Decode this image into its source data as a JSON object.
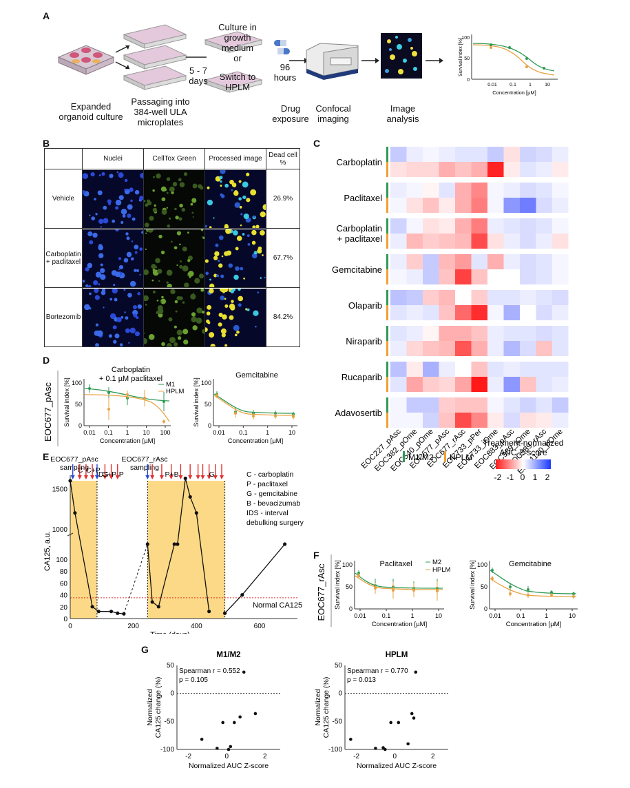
{
  "panel_labels": {
    "A": "A",
    "B": "B",
    "C": "C",
    "D": "D",
    "E": "E",
    "F": "F",
    "G": "G"
  },
  "panelA": {
    "expanded": "Expanded organoid culture",
    "passaging": "Passaging into 384-well ULA microplates",
    "days": "5 - 7 days",
    "growth": "Culture in growth medium",
    "or": "or",
    "switch": "Switch to HPLM",
    "hours": "96 hours",
    "drug": "Drug exposure",
    "confocal": "Confocal imaging",
    "image": "Image analysis",
    "mini_ylabel": "Survival index [%]",
    "mini_xlabel": "Concentration [µM]",
    "mini_yticks": [
      "0",
      "50",
      "100"
    ],
    "mini_xticks": [
      "0.01",
      "0.1",
      "1",
      "10"
    ]
  },
  "panelB": {
    "headers": [
      "Nuclei",
      "CellTox Green",
      "Processed image",
      "Dead cell %"
    ],
    "rows": [
      {
        "label": "Vehicle",
        "pct": "26.9%"
      },
      {
        "label": "Carboplatin + paclitaxel",
        "pct": "67.7%"
      },
      {
        "label": "Bortezomib",
        "pct": "84.2%"
      }
    ]
  },
  "panelC": {
    "drugs": [
      "Carboplatin",
      "Paclitaxel",
      "Carboplatin + paclitaxel",
      "Gemcitabine",
      "Olaparib",
      "Niraparib",
      "Rucaparib",
      "Adavosertib"
    ],
    "samples": [
      "EOC227_pAsc",
      "EOC382_pOme",
      "EOC540_pOme",
      "EOC677_pAsc",
      "EOC677_rAsc",
      "EOC733_pPer",
      "EOC733_iOme",
      "EOC883_pAsc",
      "EOC989_iOme",
      "EOC989_rAsc",
      "EOC1120_pOme"
    ],
    "media_legend": {
      "m1": "M1/M2",
      "hplm": "HPLM",
      "m1_color": "#2e9a54",
      "hplm_color": "#f0a030"
    },
    "scale_title": "Treatment-normalized AUC Z-score",
    "scale_ticks": [
      "-2",
      "-1",
      "0",
      "1",
      "2"
    ],
    "heatmap": [
      [
        [
          0.6,
          0.2,
          0.1,
          0.2,
          0.3,
          0.3,
          0.6,
          -0.3,
          0.5,
          0.4,
          0.2
        ],
        [
          -0.3,
          -0.4,
          -0.4,
          -0.8,
          -0.6,
          -0.8,
          -2.2,
          -0.2,
          0.3,
          0.2,
          -0.2
        ]
      ],
      [
        [
          0.2,
          0.1,
          -0.1,
          0.3,
          -0.8,
          -1.2,
          0.1,
          0.2,
          0.4,
          0.3,
          0.1
        ],
        [
          0.1,
          -0.3,
          -0.6,
          -0.2,
          -0.8,
          -1.3,
          0.1,
          1.2,
          1.5,
          0.4,
          0.2
        ]
      ],
      [
        [
          0.5,
          0.1,
          -0.3,
          -0.2,
          -0.8,
          -1.3,
          0.2,
          0.3,
          0.4,
          0.3,
          0.1
        ],
        [
          0.2,
          -0.7,
          -0.5,
          -0.6,
          -0.7,
          -1.8,
          -0.3,
          0.2,
          0.4,
          0.2,
          -0.3
        ]
      ],
      [
        [
          0.2,
          -0.5,
          0.6,
          -0.7,
          -1.0,
          0.3,
          -0.8,
          0.2,
          0.4,
          0.3,
          0.1
        ],
        [
          0.1,
          0.2,
          0.6,
          -0.6,
          -1.9,
          -0.6,
          0.0,
          0.0,
          0.4,
          0.3,
          0.1
        ]
      ],
      [
        [
          0.7,
          0.6,
          -0.5,
          -0.7,
          0.0,
          -0.5,
          0.3,
          0.3,
          0.2,
          0.3,
          0.4
        ],
        [
          0.3,
          0.2,
          0.3,
          -0.6,
          -1.5,
          -2.1,
          0.1,
          0.9,
          0.0,
          0.4,
          0.2
        ]
      ],
      [
        [
          0.3,
          0.2,
          -0.1,
          -0.8,
          -0.8,
          -0.6,
          0.2,
          0.3,
          0.3,
          0.4,
          0.3
        ],
        [
          0.2,
          -0.4,
          -0.6,
          -0.7,
          -1.7,
          -0.8,
          0.2,
          0.8,
          0.4,
          -0.6,
          0.3
        ]
      ],
      [
        [
          0.7,
          -0.2,
          0.9,
          0.2,
          0.0,
          -0.6,
          0.3,
          0.2,
          0.3,
          0.3,
          0.3
        ],
        [
          0.3,
          -0.9,
          -0.5,
          -0.4,
          -0.9,
          -2.3,
          0.2,
          1.2,
          -0.6,
          0.3,
          0.2
        ]
      ],
      [
        [
          0.1,
          0.6,
          0.6,
          -0.5,
          -0.6,
          -0.6,
          0.1,
          0.3,
          0.5,
          0.3,
          0.6
        ],
        [
          0.1,
          0.1,
          0.5,
          -0.6,
          -1.8,
          -1.2,
          -0.2,
          0.4,
          -0.3,
          -0.2,
          0.2
        ]
      ]
    ]
  },
  "panelD": {
    "side_label": "EOC677_pAsc",
    "left": {
      "title": "Carboplatin + 0.1 µM paclitaxel",
      "legend": [
        "M1",
        "HPLM"
      ],
      "xticks": [
        "0.01",
        "0.1",
        "1",
        "10",
        "100"
      ],
      "yticks": [
        "0",
        "50",
        "100"
      ],
      "ylabel": "Survival index [%]",
      "xlabel": "Concentration [µM]"
    },
    "right": {
      "title": "Gemcitabine",
      "xticks": [
        "0.01",
        "0.1",
        "1",
        "10"
      ],
      "yticks": [
        "0",
        "50",
        "100"
      ],
      "ylabel": "Survival index [%]",
      "xlabel": "Concentration [µM]"
    }
  },
  "panelE": {
    "sampling1": "EOC677_pAsc sampling",
    "sampling2": "EOC677_rAsc sampling",
    "ids": "IDS",
    "treat_labels": [
      "C",
      "C+P",
      "C+P",
      "P",
      "P+B",
      "G"
    ],
    "legend": [
      "C - carboplatin",
      "P - paclitaxel",
      "G - gemcitabine",
      "B - bevacizumab",
      "IDS - interval",
      "debulking surgery"
    ],
    "ylabel": "CA125, a.u.",
    "xlabel": "Time (days)",
    "normal": "Normal CA125",
    "yticks_upper": [
      "1000",
      "1500"
    ],
    "yticks_lower": [
      "20",
      "40",
      "60",
      "80",
      "100"
    ],
    "xticks": [
      "0",
      "200",
      "400",
      "600"
    ],
    "points": [
      [
        0,
        1600
      ],
      [
        15,
        1200
      ],
      [
        70,
        20
      ],
      [
        90,
        12
      ],
      [
        130,
        12
      ],
      [
        150,
        9
      ],
      [
        170,
        8
      ],
      [
        245,
        740
      ],
      [
        260,
        28
      ],
      [
        280,
        20
      ],
      [
        330,
        360
      ],
      [
        340,
        775
      ],
      [
        365,
        1630
      ],
      [
        380,
        1400
      ],
      [
        400,
        1200
      ],
      [
        440,
        12
      ],
      [
        490,
        9
      ],
      [
        545,
        40
      ],
      [
        680,
        220
      ]
    ]
  },
  "panelF": {
    "side_label": "EOC677_rAsc",
    "left": {
      "title": "Paclitaxel",
      "legend": [
        "M2",
        "HPLM"
      ],
      "xticks": [
        "0.01",
        "0.1",
        "1",
        "10"
      ],
      "yticks": [
        "0",
        "50",
        "100"
      ],
      "ylabel": "Survival index [%]",
      "xlabel": "Concentration [µM]"
    },
    "right": {
      "title": "Gemcitabine",
      "xticks": [
        "0.01",
        "0.1",
        "1",
        "10"
      ],
      "yticks": [
        "0",
        "50",
        "100"
      ],
      "ylabel": "Survival index [%]",
      "xlabel": "Concentration [µM]"
    }
  },
  "panelG": {
    "left": {
      "title": "M1/M2",
      "stats1": "Spearman r = 0.552",
      "stats2": "p = 0.105",
      "ylabel": "Normalized CA125 change (%)",
      "xlabel": "Normalized AUC Z-score",
      "yticks": [
        "-100",
        "-50",
        "0",
        "50"
      ],
      "xticks": [
        "-2",
        "0",
        "2"
      ],
      "points": [
        [
          -1.3,
          -82
        ],
        [
          -0.5,
          -98
        ],
        [
          -0.2,
          -52
        ],
        [
          0.1,
          -100
        ],
        [
          0.2,
          -95
        ],
        [
          0.4,
          -52
        ],
        [
          0.7,
          -42
        ],
        [
          0.9,
          38
        ],
        [
          1.5,
          -36
        ]
      ]
    },
    "right": {
      "title": "HPLM",
      "stats1": "Spearman r = 0.770",
      "stats2": "p = 0.013",
      "ylabel": "Normalized CA125 change (%)",
      "xlabel": "Normalized AUC Z-score",
      "yticks": [
        "-100",
        "-50",
        "0",
        "50"
      ],
      "xticks": [
        "-2",
        "0",
        "2"
      ],
      "points": [
        [
          -2.3,
          -82
        ],
        [
          -1.0,
          -98
        ],
        [
          -0.6,
          -97
        ],
        [
          -0.5,
          -100
        ],
        [
          -0.2,
          -52
        ],
        [
          0.2,
          -52
        ],
        [
          0.7,
          -90
        ],
        [
          0.9,
          -36
        ],
        [
          1.0,
          -44
        ],
        [
          1.1,
          38
        ]
      ]
    }
  }
}
